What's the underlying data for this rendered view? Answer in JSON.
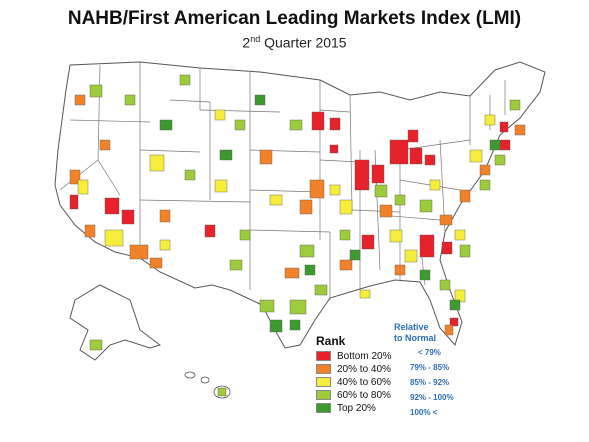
{
  "title": "NAHB/First American Leading Markets Index (LMI)",
  "subtitle": {
    "ordinal_num": "2",
    "ordinal_suffix": "nd",
    "rest": " Quarter 2015"
  },
  "legend": {
    "title": "Rank",
    "items": [
      {
        "label": "Bottom 20%",
        "color": "#e8222b"
      },
      {
        "label": "20% to 40%",
        "color": "#f2822a"
      },
      {
        "label": "40% to 60%",
        "color": "#f7ee3c"
      },
      {
        "label": "60% to 80%",
        "color": "#9ccc3b"
      },
      {
        "label": "Top 20%",
        "color": "#3c9a2e"
      }
    ]
  },
  "relative": {
    "title_line1": "Relative",
    "title_line2": "to Normal",
    "items": [
      "< 79%",
      "79% - 85%",
      "85% - 92%",
      "92% - 100%",
      "100% <"
    ]
  },
  "colors": {
    "state_fill": "#ffffff",
    "state_border": "#555555",
    "bottom": "#e8222b",
    "low": "#f2822a",
    "mid": "#f7ee3c",
    "high": "#9ccc3b",
    "top": "#3c9a2e"
  }
}
